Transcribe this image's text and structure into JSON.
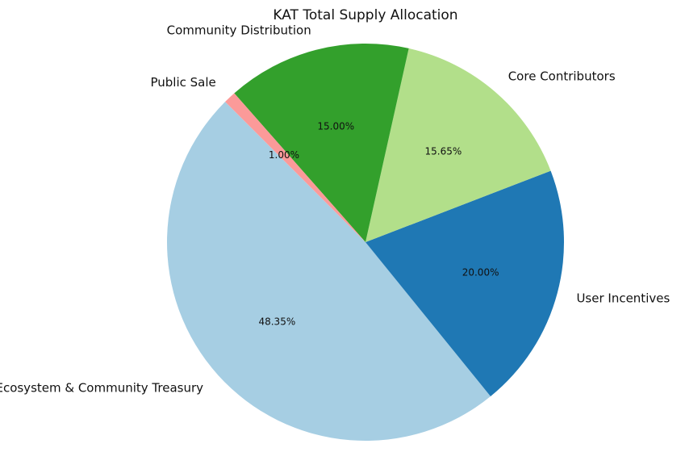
{
  "chart_data": {
    "type": "pie",
    "title": "KAT Total Supply Allocation",
    "slices": [
      {
        "label": "Ecosystem & Community Treasury",
        "value": 48.35,
        "pct_label": "48.35%",
        "color": "#a6cee3"
      },
      {
        "label": "User Incentives",
        "value": 20.0,
        "pct_label": "20.00%",
        "color": "#1f78b4"
      },
      {
        "label": "Core Contributors",
        "value": 15.65,
        "pct_label": "15.65%",
        "color": "#b2df8a"
      },
      {
        "label": "Community Distribution",
        "value": 15.0,
        "pct_label": "15.00%",
        "color": "#33a02c"
      },
      {
        "label": "Public Sale",
        "value": 1.0,
        "pct_label": "1.00%",
        "color": "#fb9a99"
      }
    ]
  }
}
